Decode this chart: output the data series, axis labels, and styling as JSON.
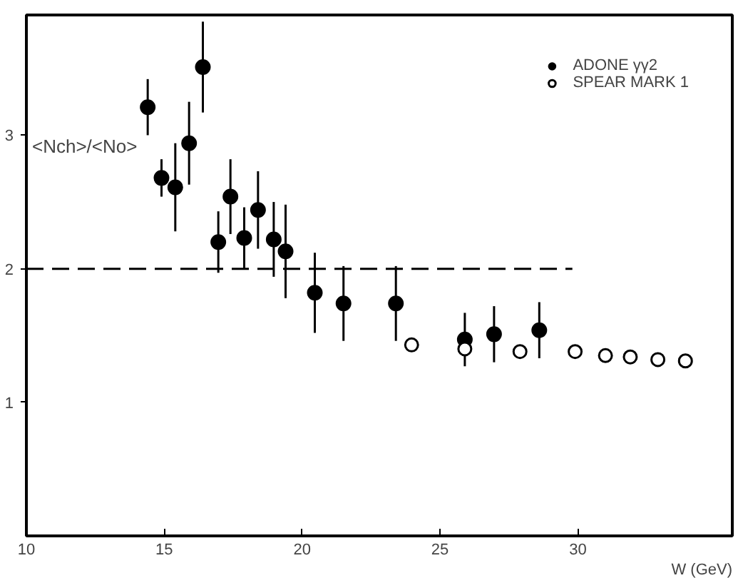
{
  "chart_data": {
    "type": "scatter",
    "xlabel": "W (GeV)",
    "ylabel": "<Nch>/<No>",
    "xlim": [
      10,
      35.6
    ],
    "ylim": [
      0,
      3.9
    ],
    "xticks": [
      10,
      15,
      20,
      25,
      30
    ],
    "yticks": [
      1,
      2,
      3
    ],
    "grid": false,
    "legend": "top right",
    "series": [
      {
        "name": "ADONE γγ2",
        "color": "#000000",
        "marker": "circle",
        "x": [
          14.4,
          14.9,
          15.4,
          15.9,
          16.4,
          16.96,
          17.4,
          17.9,
          18.4,
          18.97,
          19.4,
          20.46,
          21.5,
          23.4,
          25.9,
          26.96,
          28.6
        ],
        "values": [
          3.21,
          2.68,
          2.61,
          2.94,
          3.51,
          2.2,
          2.54,
          2.23,
          2.44,
          2.22,
          2.13,
          1.82,
          1.74,
          1.74,
          1.47,
          1.51,
          1.54
        ],
        "errors": [
          0.21,
          0.14,
          0.33,
          0.31,
          0.34,
          0.23,
          0.28,
          0.23,
          0.29,
          0.28,
          0.35,
          0.3,
          0.28,
          0.28,
          0.2,
          0.21,
          0.21
        ]
      },
      {
        "name": "SPEAR MARK 1",
        "color": "#000000",
        "marker": "open_circle",
        "x": [
          23.97,
          25.9,
          27.9,
          29.9,
          31.0,
          31.9,
          32.9,
          33.9
        ],
        "values": [
          1.43,
          1.4,
          1.38,
          1.38,
          1.35,
          1.34,
          1.32,
          1.31
        ]
      },
      {
        "type": "line",
        "color": "#000000",
        "line_style": "dashed",
        "x": [
          10,
          29.8
        ],
        "values": [
          2,
          2
        ]
      }
    ]
  }
}
